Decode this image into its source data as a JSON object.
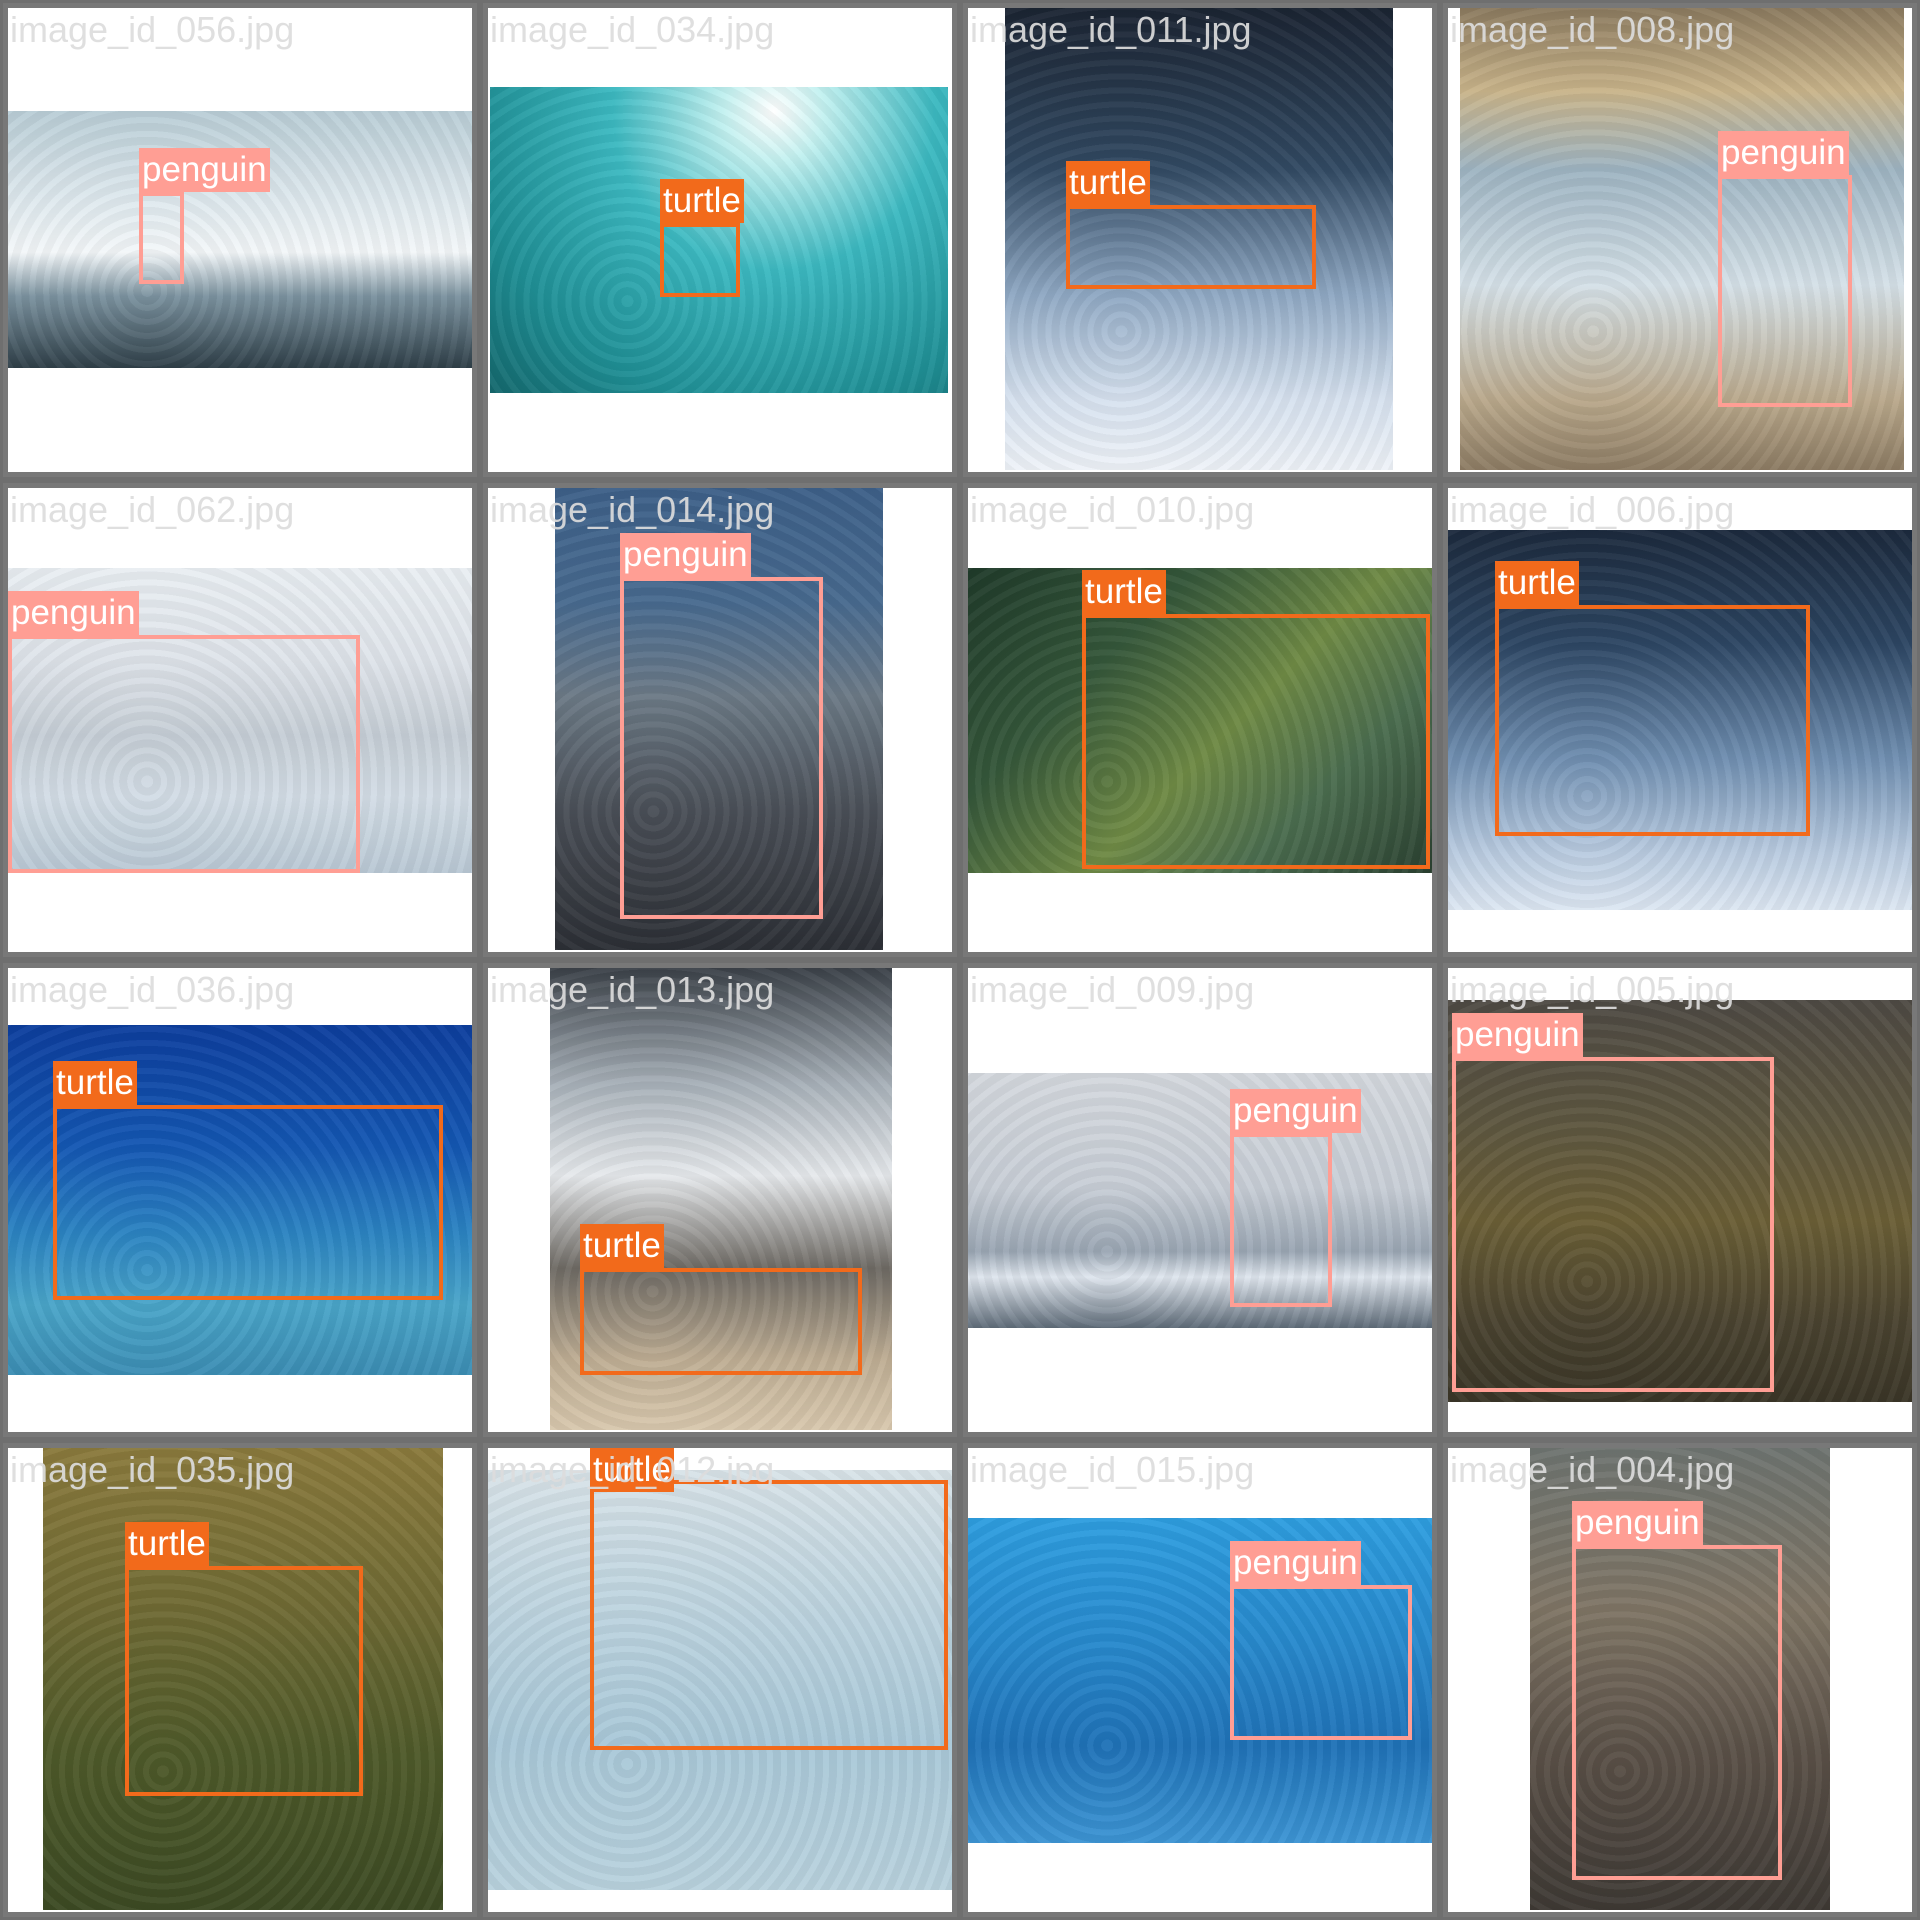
{
  "colors": {
    "penguin": "#ff9e94",
    "turtle": "#f26a1b",
    "tile_border": "#787878",
    "filename_text": "#dcdcdc"
  },
  "tiles": [
    {
      "filename": "image_id_056.jpg",
      "scene": "arctic-ice",
      "boxes": [
        {
          "label": "penguin",
          "cls": "penguin"
        }
      ]
    },
    {
      "filename": "image_id_034.jpg",
      "scene": "teal-water",
      "boxes": [
        {
          "label": "turtle",
          "cls": "turtle"
        }
      ]
    },
    {
      "filename": "image_id_011.jpg",
      "scene": "deep-blue",
      "boxes": [
        {
          "label": "turtle",
          "cls": "turtle"
        }
      ]
    },
    {
      "filename": "image_id_008.jpg",
      "scene": "rocky-shore",
      "boxes": [
        {
          "label": "penguin",
          "cls": "penguin"
        }
      ]
    },
    {
      "filename": "image_id_062.jpg",
      "scene": "snow-mountain",
      "boxes": [
        {
          "label": "penguin",
          "cls": "penguin"
        }
      ]
    },
    {
      "filename": "image_id_014.jpg",
      "scene": "pebble-beach",
      "boxes": [
        {
          "label": "penguin",
          "cls": "penguin"
        }
      ]
    },
    {
      "filename": "image_id_010.jpg",
      "scene": "green-reef",
      "boxes": [
        {
          "label": "turtle",
          "cls": "turtle"
        }
      ]
    },
    {
      "filename": "image_id_006.jpg",
      "scene": "dark-ocean",
      "boxes": [
        {
          "label": "turtle",
          "cls": "turtle"
        }
      ]
    },
    {
      "filename": "image_id_036.jpg",
      "scene": "blue-seabed",
      "boxes": [
        {
          "label": "turtle",
          "cls": "turtle"
        }
      ]
    },
    {
      "filename": "image_id_013.jpg",
      "scene": "splashing-surf",
      "boxes": [
        {
          "label": "turtle",
          "cls": "turtle"
        }
      ]
    },
    {
      "filename": "image_id_009.jpg",
      "scene": "icy-sea",
      "boxes": [
        {
          "label": "penguin",
          "cls": "penguin"
        }
      ]
    },
    {
      "filename": "image_id_005.jpg",
      "scene": "mossy-rocks",
      "boxes": [
        {
          "label": "penguin",
          "cls": "penguin"
        }
      ]
    },
    {
      "filename": "image_id_035.jpg",
      "scene": "grass",
      "boxes": [
        {
          "label": "turtle",
          "cls": "turtle"
        }
      ]
    },
    {
      "filename": "image_id_012.jpg",
      "scene": "pale-pool",
      "boxes": [
        {
          "label": "turtle",
          "cls": "turtle"
        }
      ]
    },
    {
      "filename": "image_id_015.jpg",
      "scene": "aquarium-blue",
      "boxes": [
        {
          "label": "penguin",
          "cls": "penguin"
        }
      ]
    },
    {
      "filename": "image_id_004.jpg",
      "scene": "rock-cliff",
      "boxes": [
        {
          "label": "penguin",
          "cls": "penguin"
        }
      ]
    }
  ]
}
